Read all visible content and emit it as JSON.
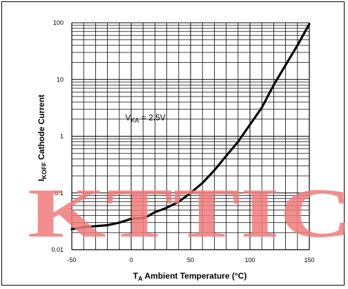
{
  "chart_data": {
    "type": "line",
    "title": "",
    "xlabel": {
      "main": "T",
      "sub": "A",
      "rest": " Ambient Temperature (°C)"
    },
    "ylabel": {
      "main": "I",
      "sub": "KOFF",
      "rest": " Cathode Current"
    },
    "x_ticks": [
      "-50",
      "0",
      "50",
      "100",
      "150"
    ],
    "y_ticks": [
      "0.01",
      "0.1",
      "1",
      "10",
      "100"
    ],
    "xlim": [
      -50,
      150
    ],
    "ylim": [
      0.01,
      100
    ],
    "y_scale": "log",
    "grid": true,
    "annotation": {
      "main": "V",
      "sub": "KA",
      "rest": " = 2.5V",
      "x": -5,
      "y": 1.9
    },
    "series": [
      {
        "x": [
          -50,
          -40,
          -30,
          -20,
          -10,
          0,
          10,
          15,
          20,
          25,
          30,
          40,
          50,
          60,
          70,
          80,
          90,
          100,
          110,
          120,
          130,
          140,
          150
        ],
        "y": [
          0.023,
          0.025,
          0.026,
          0.027,
          0.03,
          0.035,
          0.036,
          0.04,
          0.046,
          0.05,
          0.055,
          0.07,
          0.1,
          0.15,
          0.25,
          0.45,
          0.8,
          1.6,
          3.2,
          8,
          18,
          40,
          95
        ]
      }
    ]
  },
  "watermark": "KTTIC"
}
